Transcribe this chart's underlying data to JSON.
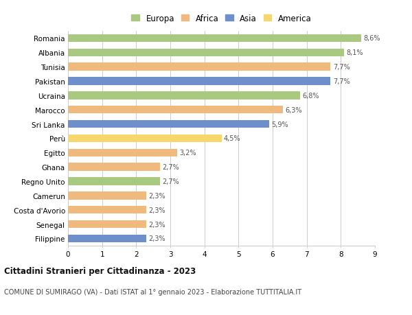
{
  "countries": [
    "Romania",
    "Albania",
    "Tunisia",
    "Pakistan",
    "Ucraina",
    "Marocco",
    "Sri Lanka",
    "Perù",
    "Egitto",
    "Ghana",
    "Regno Unito",
    "Camerun",
    "Costa d'Avorio",
    "Senegal",
    "Filippine"
  ],
  "values": [
    8.6,
    8.1,
    7.7,
    7.7,
    6.8,
    6.3,
    5.9,
    4.5,
    3.2,
    2.7,
    2.7,
    2.3,
    2.3,
    2.3,
    2.3
  ],
  "labels": [
    "8,6%",
    "8,1%",
    "7,7%",
    "7,7%",
    "6,8%",
    "6,3%",
    "5,9%",
    "4,5%",
    "3,2%",
    "2,7%",
    "2,7%",
    "2,3%",
    "2,3%",
    "2,3%",
    "2,3%"
  ],
  "continents": [
    "Europa",
    "Europa",
    "Africa",
    "Asia",
    "Europa",
    "Africa",
    "Asia",
    "America",
    "Africa",
    "Africa",
    "Europa",
    "Africa",
    "Africa",
    "Africa",
    "Asia"
  ],
  "colors": {
    "Europa": "#a8c97f",
    "Africa": "#f0b97d",
    "Asia": "#6e8fc9",
    "America": "#f5d76e"
  },
  "legend_order": [
    "Europa",
    "Africa",
    "Asia",
    "America"
  ],
  "xlim": [
    0,
    9
  ],
  "xticks": [
    0,
    1,
    2,
    3,
    4,
    5,
    6,
    7,
    8,
    9
  ],
  "title": "Cittadini Stranieri per Cittadinanza - 2023",
  "subtitle": "COMUNE DI SUMIRAGO (VA) - Dati ISTAT al 1° gennaio 2023 - Elaborazione TUTTITALIA.IT",
  "bg_color": "#ffffff",
  "grid_color": "#cccccc",
  "bar_height": 0.55
}
